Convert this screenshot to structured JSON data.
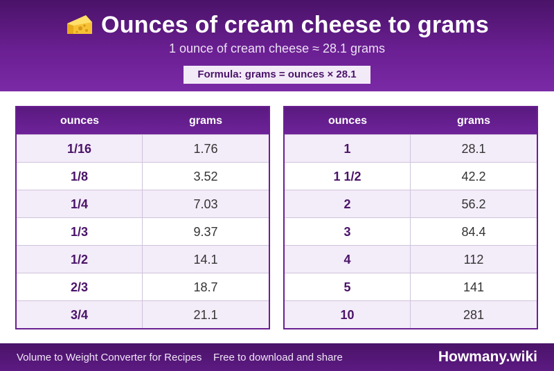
{
  "header": {
    "title": "Ounces of cream cheese to grams",
    "subtitle": "1 ounce of cream cheese ≈ 28.1 grams",
    "formula": "Formula: grams = ounces × 28.1",
    "icon": "cheese-icon"
  },
  "tables": {
    "columns": [
      "ounces",
      "grams"
    ],
    "left": [
      [
        "1/16",
        "1.76"
      ],
      [
        "1/8",
        "3.52"
      ],
      [
        "1/4",
        "7.03"
      ],
      [
        "1/3",
        "9.37"
      ],
      [
        "1/2",
        "14.1"
      ],
      [
        "2/3",
        "18.7"
      ],
      [
        "3/4",
        "21.1"
      ]
    ],
    "right": [
      [
        "1",
        "28.1"
      ],
      [
        "1 1/2",
        "42.2"
      ],
      [
        "2",
        "56.2"
      ],
      [
        "3",
        "84.4"
      ],
      [
        "4",
        "112"
      ],
      [
        "5",
        "141"
      ],
      [
        "10",
        "281"
      ]
    ]
  },
  "footer": {
    "left": "Volume to Weight Converter for Recipes",
    "middle": "Free to download and share",
    "brand": "Howmany.wiki"
  },
  "colors": {
    "accent": "#6a1f92",
    "dark": "#4a1368"
  }
}
